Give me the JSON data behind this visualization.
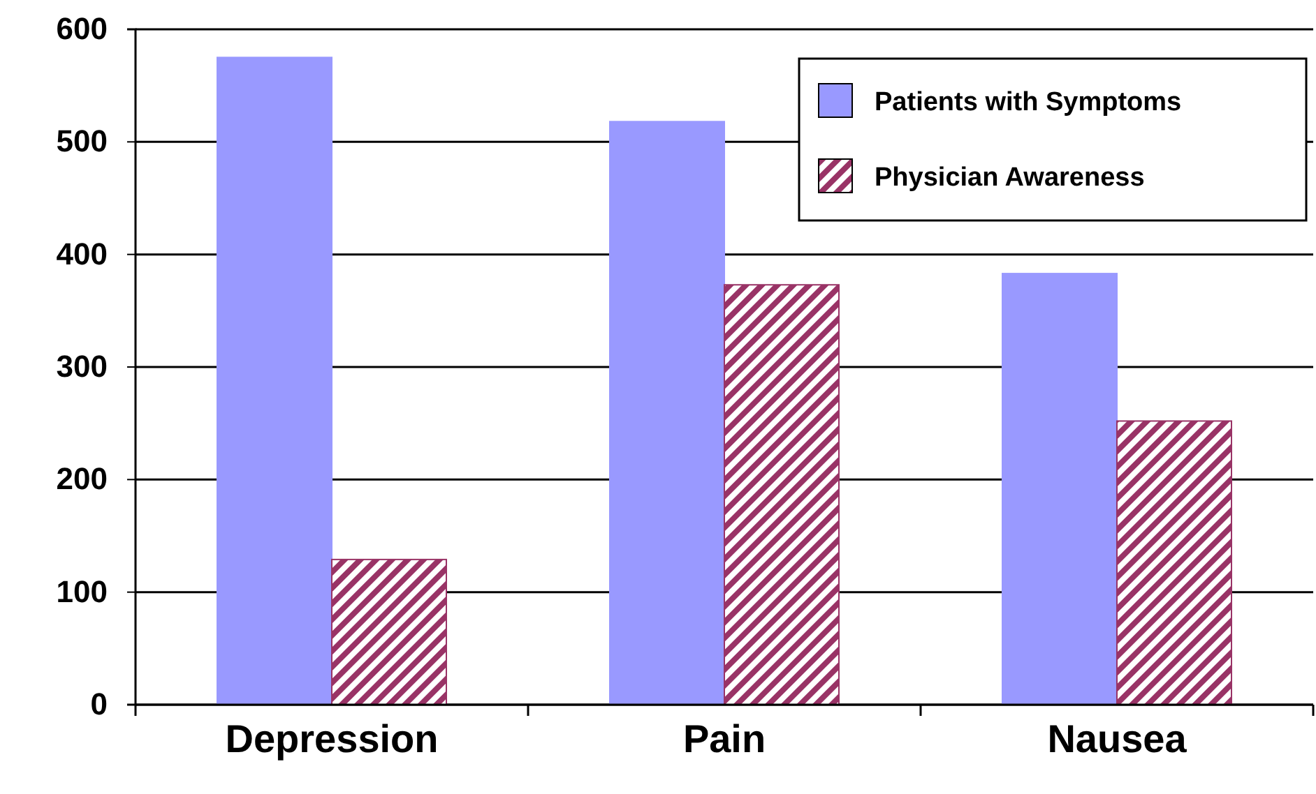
{
  "chart_data": {
    "type": "bar",
    "categories": [
      "Depression",
      "Pain",
      "Nausea"
    ],
    "series": [
      {
        "name": "Patients with Symptoms",
        "color": "#9999ff",
        "values": [
          575,
          518,
          383
        ]
      },
      {
        "name": "Physician Awareness",
        "color": "#993366",
        "values": [
          129,
          373,
          252
        ]
      }
    ],
    "ylim": [
      0,
      600
    ],
    "yticks": [
      0,
      100,
      200,
      300,
      400,
      500,
      600
    ],
    "grid": "y",
    "legend": "top right"
  }
}
